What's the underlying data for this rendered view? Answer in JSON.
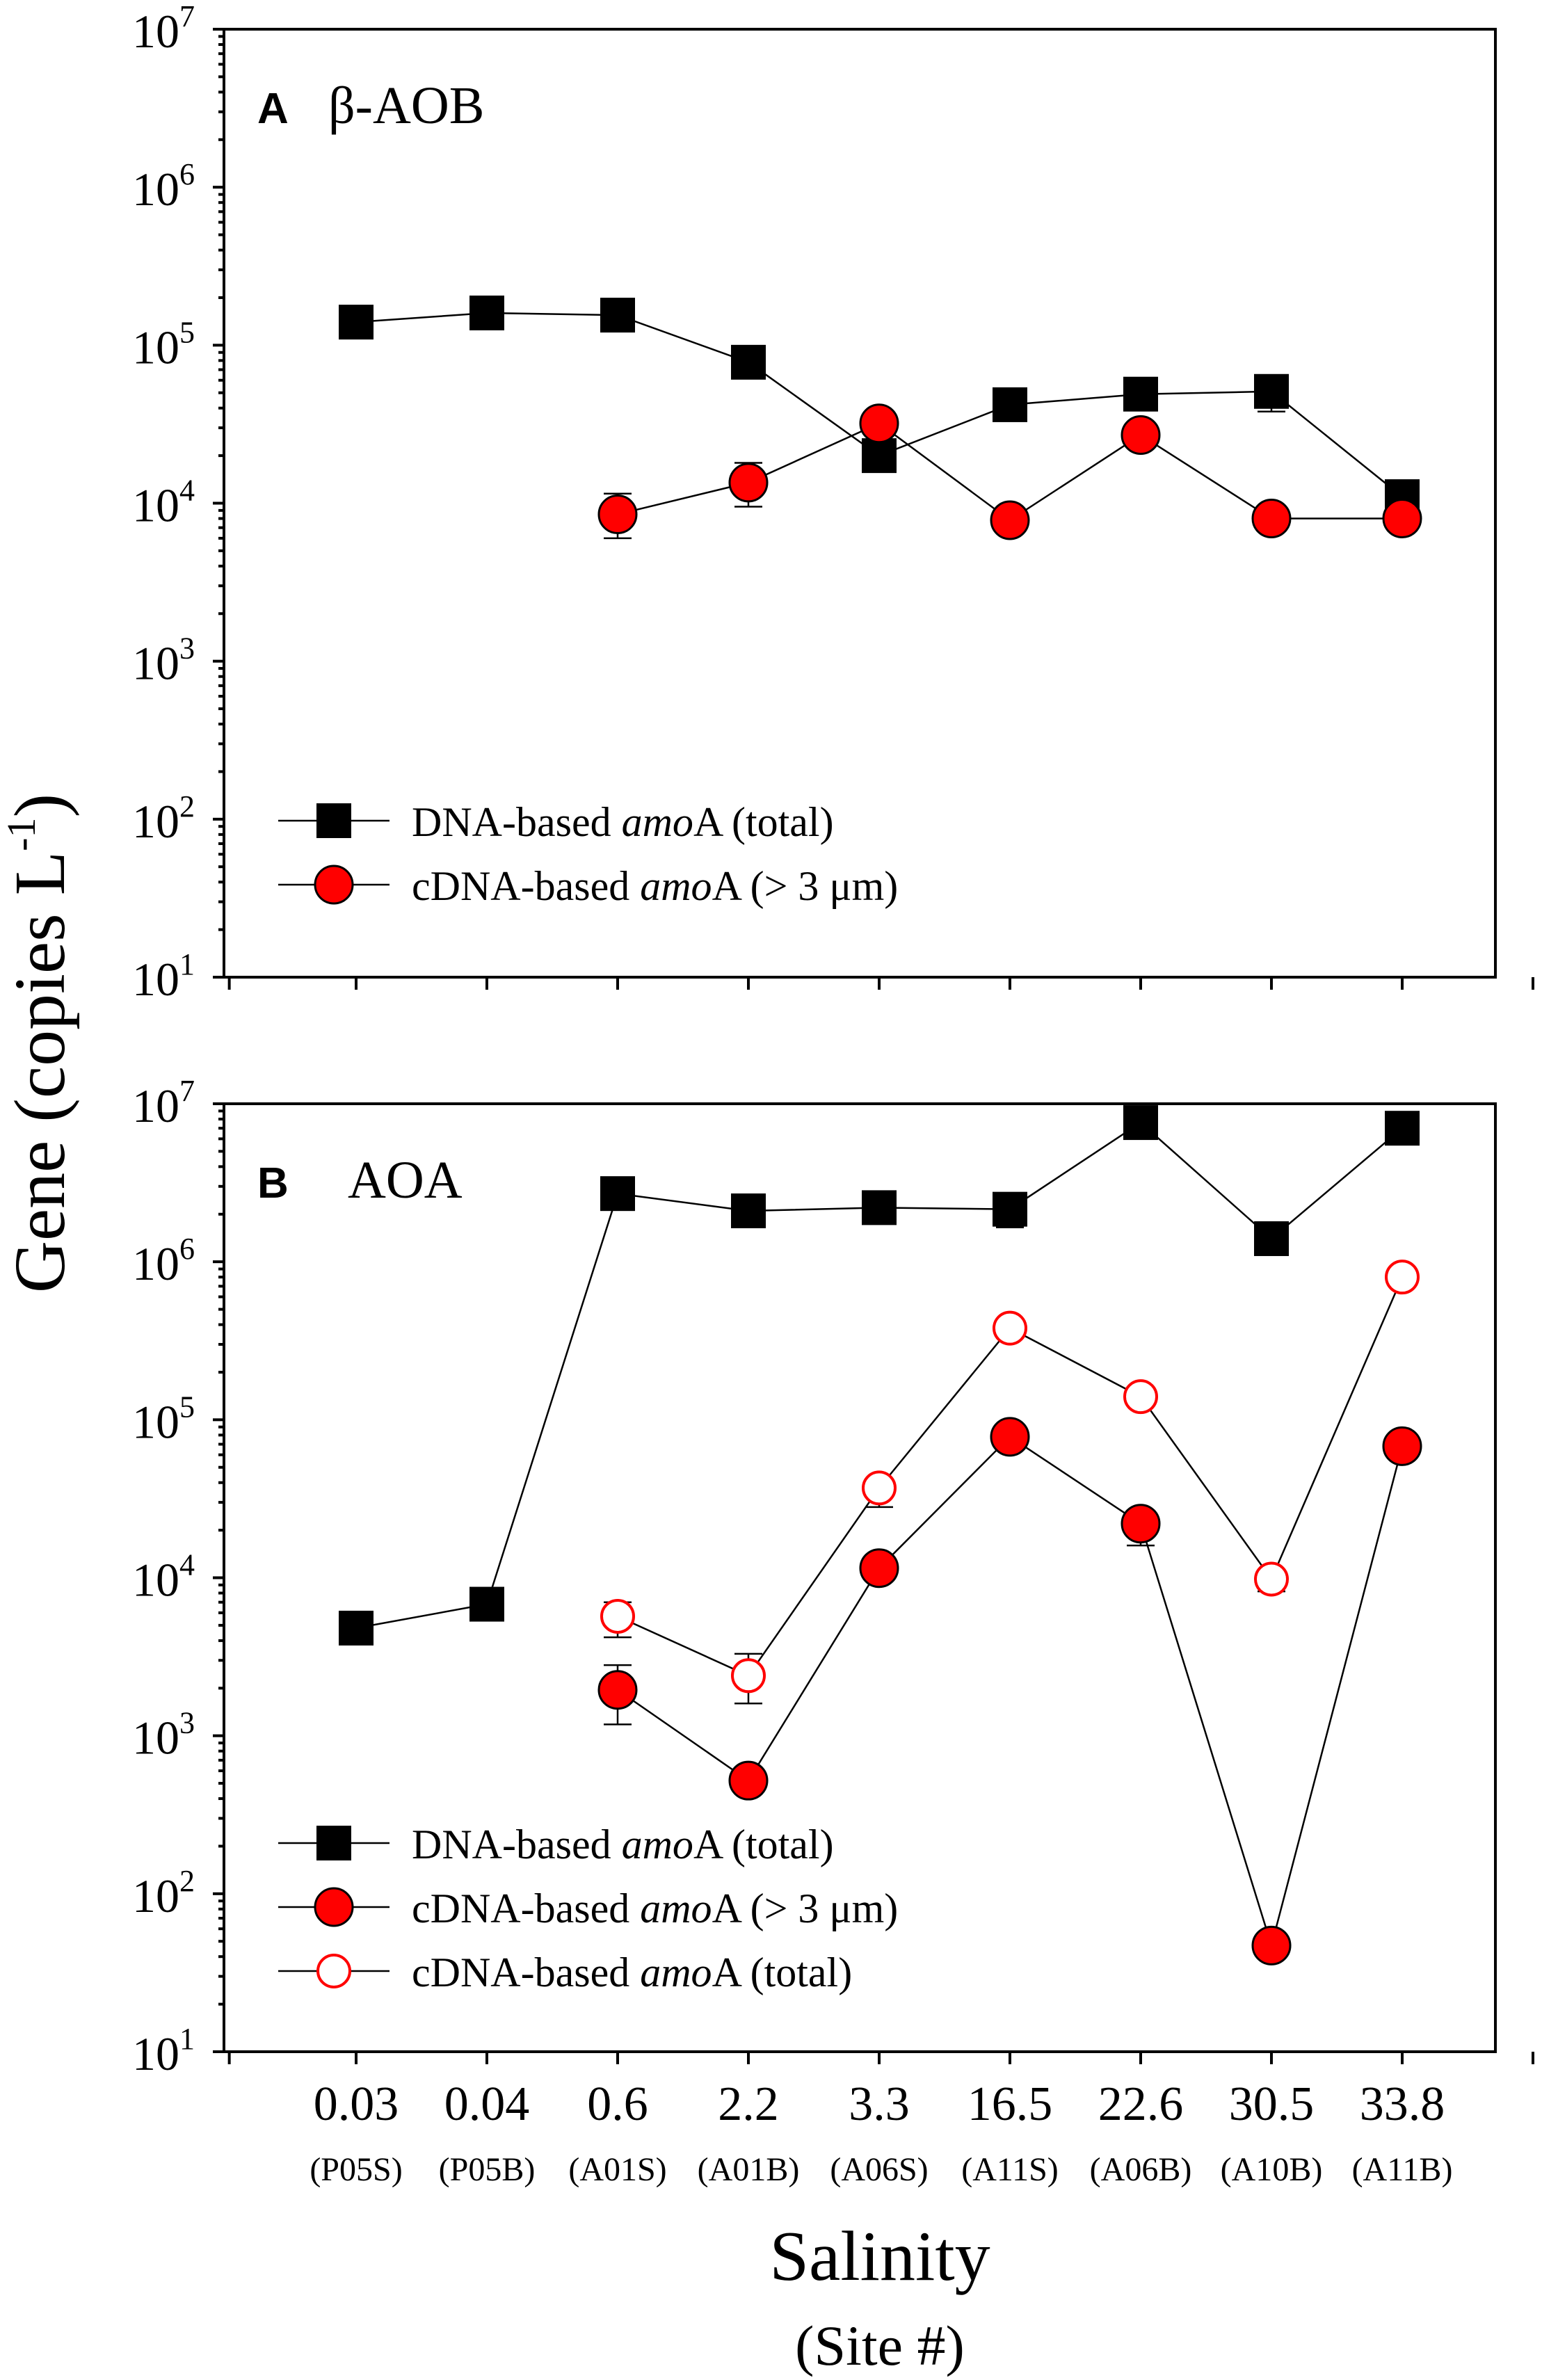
{
  "chart_data": [
    {
      "type": "scatter",
      "panel_label": "A",
      "title": "β-AOB",
      "yscale": "log",
      "ylim": [
        10,
        10000000
      ],
      "ytick_exponents": [
        1,
        2,
        3,
        4,
        5,
        6,
        7
      ],
      "ytick_base": "10",
      "legend_position": "lower-left",
      "series": [
        {
          "name_parts": [
            "DNA-based ",
            "amo",
            "A (total)"
          ],
          "marker": "square-filled",
          "values": [
            140000,
            160000,
            155000,
            78000,
            20000,
            42000,
            49000,
            51000,
            11000
          ],
          "err_low": [
            null,
            null,
            null,
            73000,
            null,
            39000,
            null,
            38000,
            9000
          ],
          "err_high": [
            null,
            170000,
            null,
            90000,
            23000,
            47000,
            53000,
            58000,
            12500
          ]
        },
        {
          "name_parts": [
            "cDNA-based ",
            "amo",
            "A (> 3 μm)"
          ],
          "marker": "circle-filled-red",
          "values": [
            null,
            null,
            8500,
            13500,
            32000,
            7800,
            27000,
            8000,
            8000
          ],
          "err_low": [
            null,
            null,
            6000,
            9500,
            null,
            null,
            null,
            null,
            null
          ],
          "err_high": [
            null,
            null,
            11500,
            18000,
            null,
            null,
            null,
            null,
            null
          ]
        }
      ]
    },
    {
      "type": "scatter",
      "panel_label": "B",
      "title": "AOA",
      "yscale": "log",
      "ylim": [
        10,
        10000000
      ],
      "ytick_exponents": [
        1,
        2,
        3,
        4,
        5,
        6,
        7
      ],
      "ytick_base": "10",
      "legend_position": "lower-left",
      "series": [
        {
          "name_parts": [
            "DNA-based ",
            "amo",
            "A (total)"
          ],
          "marker": "square-filled",
          "values": [
            4800,
            6800,
            2700000,
            2100000,
            2200000,
            2150000,
            7600000,
            1400000,
            7000000
          ],
          "err_low": [
            null,
            null,
            null,
            null,
            null,
            1650000,
            null,
            null,
            null
          ],
          "err_high": [
            null,
            null,
            3000000,
            null,
            null,
            2500000,
            8200000,
            null,
            7600000
          ]
        },
        {
          "name_parts": [
            "cDNA-based ",
            "amo",
            "A (> 3 μm)"
          ],
          "marker": "circle-filled-red",
          "values": [
            null,
            null,
            1950,
            520,
            11500,
            78000,
            22000,
            47,
            68000
          ],
          "err_low": [
            null,
            null,
            1180,
            null,
            null,
            null,
            16000,
            null,
            null
          ],
          "err_high": [
            null,
            null,
            2800,
            null,
            null,
            null,
            null,
            null,
            null
          ]
        },
        {
          "name_parts": [
            "cDNA-based ",
            "amo",
            "A (total)"
          ],
          "marker": "circle-open-red",
          "values": [
            null,
            null,
            5700,
            2400,
            37000,
            380000,
            140000,
            9800,
            800000
          ],
          "err_low": [
            null,
            null,
            4200,
            1600,
            28000,
            330000,
            125000,
            8200,
            740000
          ],
          "err_high": [
            null,
            null,
            7000,
            3300,
            null,
            430000,
            150000,
            null,
            850000
          ]
        }
      ]
    }
  ],
  "x_categories": {
    "salinity": [
      "0.03",
      "0.04",
      "0.6",
      "2.2",
      "3.3",
      "16.5",
      "22.6",
      "30.5",
      "33.8"
    ],
    "sites": [
      "(P05S)",
      "(P05B)",
      "(A01S)",
      "(A01B)",
      "(A06S)",
      "(A11S)",
      "(A06B)",
      "(A10B)",
      "(A11B)"
    ]
  },
  "axes": {
    "ylabel_main": "Gene (copies L",
    "ylabel_sup": "-1",
    "ylabel_end": ")",
    "xlabel": "Salinity",
    "xlabel_sub": "(Site #)"
  },
  "colors": {
    "marker_red": "#ff0000",
    "marker_black": "#000000",
    "axis": "#000000"
  }
}
